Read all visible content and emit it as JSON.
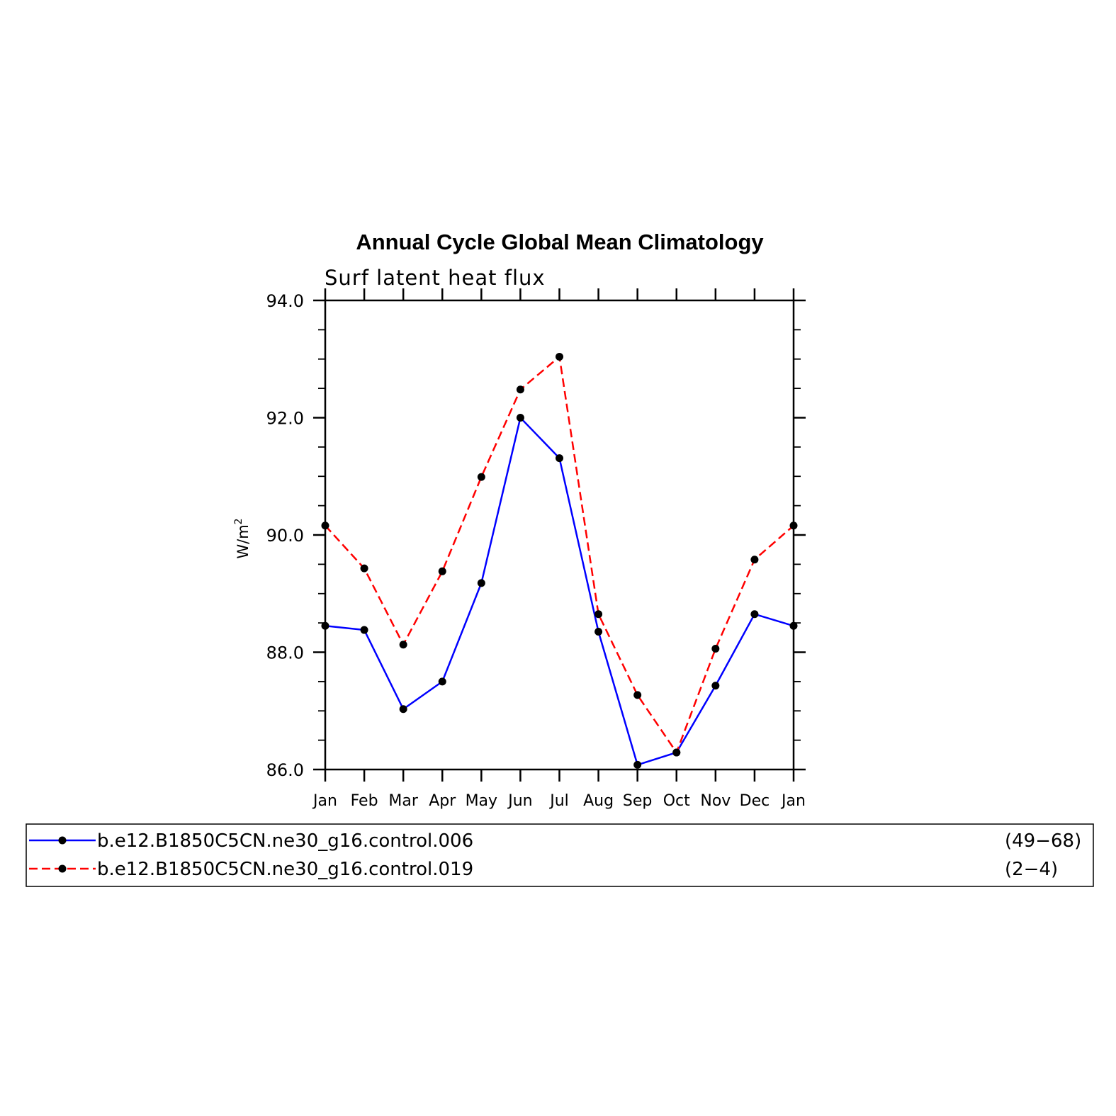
{
  "chart_data": {
    "type": "line",
    "title": "Annual Cycle Global Mean Climatology",
    "subtitle": "Surf latent heat flux",
    "ylabel": "W/m",
    "ylabel_sup": "2",
    "xlabel": "",
    "ylim": [
      86.0,
      94.0
    ],
    "yticks": [
      "86.0",
      "88.0",
      "90.0",
      "92.0",
      "94.0"
    ],
    "categories": [
      "Jan",
      "Feb",
      "Mar",
      "Apr",
      "May",
      "Jun",
      "Jul",
      "Aug",
      "Sep",
      "Oct",
      "Nov",
      "Dec",
      "Jan"
    ],
    "series": [
      {
        "name": "b.e12.B1850C5CN.ne30_g16.control.006",
        "years": "(49−68)",
        "color": "#0000ff",
        "dash": "solid",
        "values": [
          88.45,
          88.38,
          87.03,
          87.5,
          89.18,
          92.0,
          91.31,
          88.35,
          86.08,
          86.29,
          87.43,
          88.65,
          88.45
        ]
      },
      {
        "name": "b.e12.B1850C5CN.ne30_g16.control.019",
        "years": "(2−4)",
        "color": "#ff0000",
        "dash": "dashed",
        "values": [
          90.16,
          89.43,
          88.13,
          89.38,
          90.99,
          92.48,
          93.04,
          88.65,
          87.27,
          86.29,
          88.06,
          89.58,
          90.16
        ]
      }
    ],
    "marker_color": "#000000",
    "grid": false,
    "legend_position": "bottom"
  }
}
